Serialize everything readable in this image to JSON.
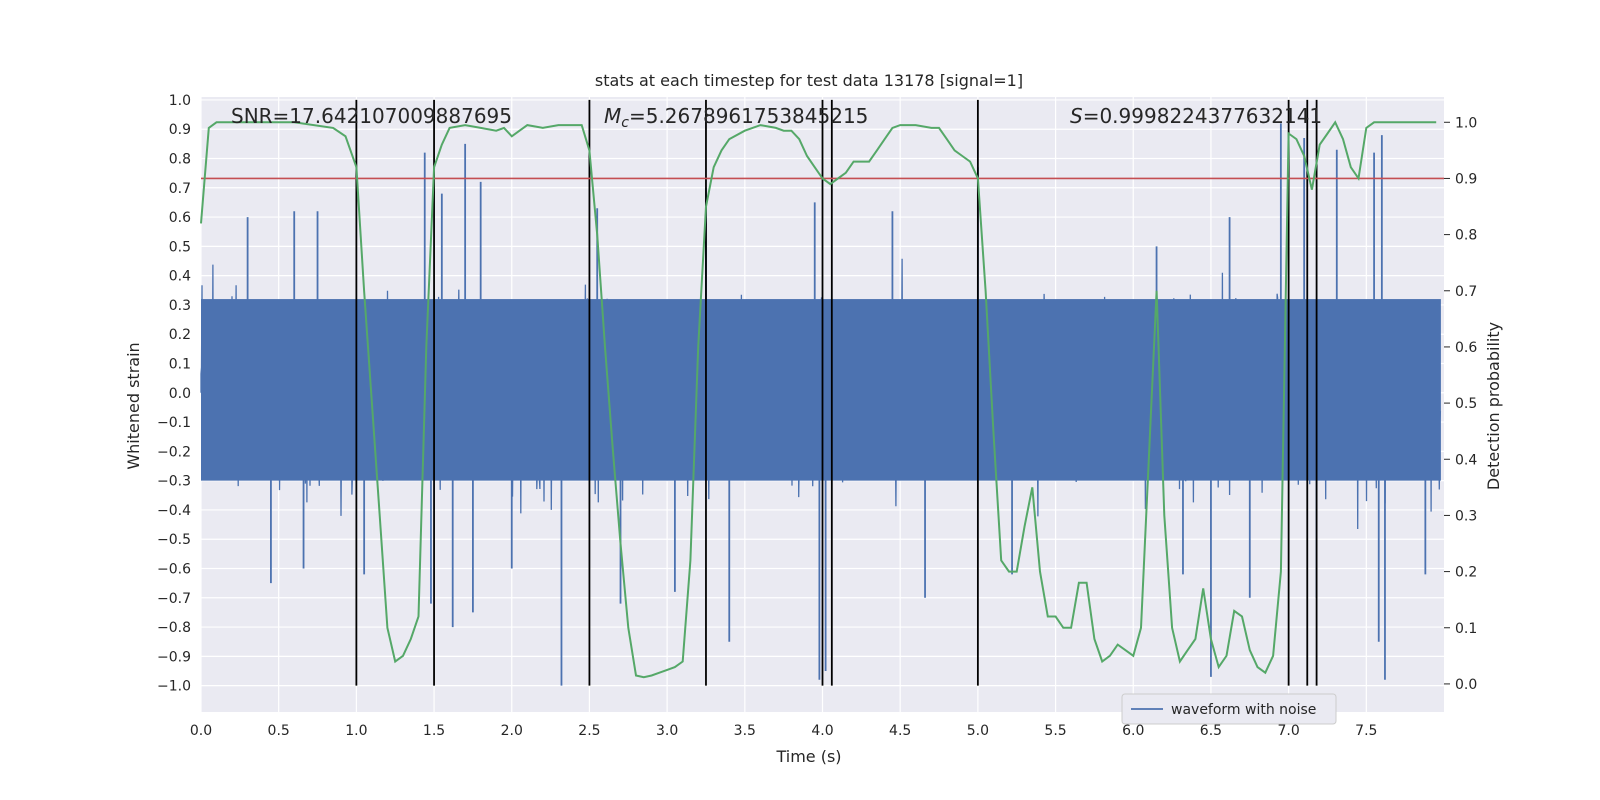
{
  "chart_data": {
    "type": "line",
    "title": "stats at each timestep for test data 13178 [signal=1]",
    "xlabel": "Time (s)",
    "ylabel": "Whitened strain",
    "y2label": "Detection probability",
    "xlim": [
      0.0,
      8.0
    ],
    "ylim": [
      -1.09,
      1.01
    ],
    "y2lim": [
      -0.05,
      1.045
    ],
    "x_ticks": [
      0.0,
      0.5,
      1.0,
      1.5,
      2.0,
      2.5,
      3.0,
      3.5,
      4.0,
      4.5,
      5.0,
      5.5,
      6.0,
      6.5,
      7.0,
      7.5
    ],
    "x_tick_labels": [
      "0.0",
      "0.5",
      "1.0",
      "1.5",
      "2.0",
      "2.5",
      "3.0",
      "3.5",
      "4.0",
      "4.5",
      "5.0",
      "5.5",
      "6.0",
      "6.5",
      "7.0",
      "7.5"
    ],
    "y_ticks": [
      1.0,
      0.9,
      0.8,
      0.7,
      0.6,
      0.5,
      0.4,
      0.3,
      0.2,
      0.1,
      0.0,
      -0.1,
      -0.2,
      -0.3,
      -0.4,
      -0.5,
      -0.6,
      -0.7,
      -0.8,
      -0.9,
      -1.0
    ],
    "y_tick_labels": [
      "1.0",
      "0.9",
      "0.8",
      "0.7",
      "0.6",
      "0.5",
      "0.4",
      "0.3",
      "0.2",
      "0.1",
      "0.0",
      "−0.1",
      "−0.2",
      "−0.3",
      "−0.4",
      "−0.5",
      "−0.6",
      "−0.7",
      "−0.8",
      "−0.9",
      "−1.0"
    ],
    "y2_ticks": [
      1.0,
      0.9,
      0.8,
      0.7,
      0.6,
      0.5,
      0.4,
      0.3,
      0.2,
      0.1,
      0.0
    ],
    "y2_tick_labels": [
      "1.0",
      "0.9",
      "0.8",
      "0.7",
      "0.6",
      "0.5",
      "0.4",
      "0.3",
      "0.2",
      "0.1",
      "0.0"
    ],
    "annotations": {
      "snr": "SNR=17.642107009887695",
      "mc_symbol": "M",
      "mc_sub": "c",
      "mc_value": "=5.2678961753845215",
      "s_symbol": "S",
      "s_value": "=0.9998224377632141"
    },
    "threshold": {
      "y2": 0.9,
      "color": "#c44e52"
    },
    "vertical_lines": [
      1.0,
      1.5,
      2.5,
      3.25,
      4.0,
      4.06,
      5.0,
      7.0,
      7.12,
      7.18
    ],
    "vertical_line_range": [
      -1.0,
      1.0
    ],
    "noise_series": {
      "name": "waveform with noise",
      "color": "#4c72b0",
      "dense_band": [
        -0.3,
        0.32
      ],
      "typical_envelope": 0.52,
      "spikes": [
        [
          0.3,
          0.6
        ],
        [
          0.45,
          -0.65
        ],
        [
          0.6,
          0.62
        ],
        [
          0.66,
          -0.6
        ],
        [
          0.75,
          0.62
        ],
        [
          1.05,
          -0.62
        ],
        [
          1.44,
          0.82
        ],
        [
          1.48,
          -0.72
        ],
        [
          1.55,
          0.68
        ],
        [
          1.62,
          -0.8
        ],
        [
          1.7,
          0.85
        ],
        [
          1.75,
          -0.75
        ],
        [
          1.8,
          0.72
        ],
        [
          2.0,
          -0.6
        ],
        [
          2.32,
          -1.0
        ],
        [
          2.55,
          0.63
        ],
        [
          2.7,
          -0.72
        ],
        [
          3.05,
          -0.68
        ],
        [
          3.25,
          0.7
        ],
        [
          3.4,
          -0.85
        ],
        [
          3.95,
          0.65
        ],
        [
          3.98,
          -0.98
        ],
        [
          4.02,
          -0.95
        ],
        [
          4.45,
          0.62
        ],
        [
          4.66,
          -0.7
        ],
        [
          5.0,
          0.77
        ],
        [
          5.22,
          -0.62
        ],
        [
          6.15,
          0.5
        ],
        [
          6.32,
          -0.62
        ],
        [
          6.5,
          -0.97
        ],
        [
          6.62,
          0.6
        ],
        [
          6.75,
          -0.7
        ],
        [
          6.95,
          0.92
        ],
        [
          7.1,
          0.87
        ],
        [
          7.18,
          -0.7
        ],
        [
          7.31,
          0.83
        ],
        [
          7.55,
          0.82
        ],
        [
          7.58,
          -0.85
        ],
        [
          7.6,
          0.88
        ],
        [
          7.62,
          -0.98
        ],
        [
          7.88,
          -0.62
        ]
      ]
    },
    "probability_series": {
      "name": "Detection probability",
      "color": "#55a868",
      "x": [
        0.0,
        0.05,
        0.1,
        0.3,
        0.6,
        0.85,
        0.93,
        1.0,
        1.05,
        1.1,
        1.15,
        1.2,
        1.25,
        1.3,
        1.35,
        1.4,
        1.45,
        1.5,
        1.55,
        1.6,
        1.7,
        1.8,
        1.9,
        1.95,
        2.0,
        2.05,
        2.1,
        2.2,
        2.3,
        2.45,
        2.5,
        2.55,
        2.6,
        2.65,
        2.7,
        2.75,
        2.8,
        2.85,
        2.9,
        2.95,
        3.0,
        3.05,
        3.1,
        3.15,
        3.2,
        3.25,
        3.3,
        3.35,
        3.4,
        3.5,
        3.6,
        3.7,
        3.75,
        3.8,
        3.85,
        3.9,
        3.95,
        4.0,
        4.05,
        4.1,
        4.15,
        4.2,
        4.3,
        4.35,
        4.4,
        4.45,
        4.5,
        4.6,
        4.7,
        4.75,
        4.8,
        4.85,
        4.9,
        4.95,
        5.0,
        5.05,
        5.1,
        5.15,
        5.2,
        5.25,
        5.3,
        5.35,
        5.4,
        5.45,
        5.5,
        5.55,
        5.6,
        5.65,
        5.7,
        5.75,
        5.8,
        5.85,
        5.9,
        5.95,
        6.0,
        6.05,
        6.1,
        6.15,
        6.2,
        6.25,
        6.3,
        6.35,
        6.4,
        6.45,
        6.5,
        6.55,
        6.6,
        6.65,
        6.7,
        6.75,
        6.8,
        6.85,
        6.9,
        6.95,
        7.0,
        7.05,
        7.1,
        7.15,
        7.2,
        7.25,
        7.3,
        7.35,
        7.4,
        7.45,
        7.5,
        7.55,
        7.6,
        7.7,
        7.8,
        7.95
      ],
      "y": [
        0.82,
        0.99,
        1.0,
        1.0,
        1.0,
        0.99,
        0.975,
        0.92,
        0.7,
        0.5,
        0.3,
        0.1,
        0.04,
        0.05,
        0.08,
        0.12,
        0.6,
        0.92,
        0.96,
        0.99,
        0.995,
        0.99,
        0.985,
        0.99,
        0.975,
        0.985,
        0.995,
        0.99,
        0.995,
        0.995,
        0.95,
        0.8,
        0.6,
        0.42,
        0.25,
        0.1,
        0.015,
        0.012,
        0.015,
        0.02,
        0.025,
        0.03,
        0.04,
        0.22,
        0.6,
        0.85,
        0.92,
        0.95,
        0.97,
        0.985,
        0.995,
        0.99,
        0.985,
        0.985,
        0.97,
        0.94,
        0.92,
        0.9,
        0.89,
        0.9,
        0.91,
        0.93,
        0.93,
        0.95,
        0.97,
        0.99,
        0.995,
        0.995,
        0.99,
        0.99,
        0.97,
        0.95,
        0.94,
        0.93,
        0.9,
        0.7,
        0.45,
        0.22,
        0.2,
        0.2,
        0.28,
        0.35,
        0.2,
        0.12,
        0.12,
        0.1,
        0.1,
        0.18,
        0.18,
        0.08,
        0.04,
        0.05,
        0.07,
        0.06,
        0.05,
        0.1,
        0.4,
        0.7,
        0.3,
        0.1,
        0.04,
        0.06,
        0.08,
        0.17,
        0.08,
        0.03,
        0.05,
        0.13,
        0.12,
        0.06,
        0.03,
        0.02,
        0.05,
        0.2,
        0.98,
        0.97,
        0.94,
        0.88,
        0.96,
        0.98,
        1.0,
        0.97,
        0.92,
        0.9,
        0.99,
        1.0,
        1.0,
        1.0,
        1.0,
        1.0
      ]
    },
    "legend": {
      "label": "waveform with noise",
      "location": "lower-right"
    },
    "background_color": "#eaeaf2",
    "grid": true
  }
}
